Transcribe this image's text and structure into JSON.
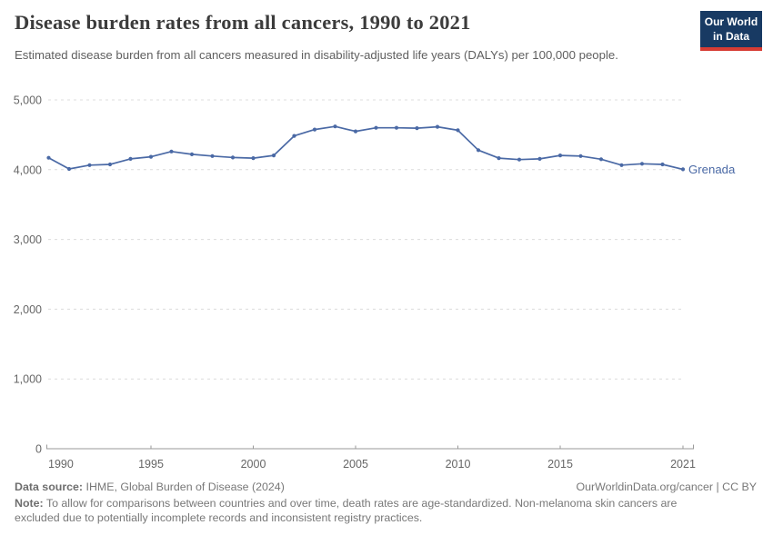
{
  "header": {
    "title": "Disease burden rates from all cancers, 1990 to 2021",
    "subtitle": "Estimated disease burden from all cancers measured in disability-adjusted life years (DALYs) per 100,000 people.",
    "logo": {
      "line1": "Our World",
      "line2": "in Data"
    }
  },
  "chart_data": {
    "type": "line",
    "title": "Disease burden rates from all cancers, 1990 to 2021",
    "subtitle": "Estimated disease burden from all cancers measured in disability-adjusted life years (DALYs) per 100,000 people.",
    "x": [
      1990,
      1991,
      1992,
      1993,
      1994,
      1995,
      1996,
      1997,
      1998,
      1999,
      2000,
      2001,
      2002,
      2003,
      2004,
      2005,
      2006,
      2007,
      2008,
      2009,
      2010,
      2011,
      2012,
      2013,
      2014,
      2015,
      2016,
      2017,
      2018,
      2019,
      2020,
      2021
    ],
    "series": [
      {
        "name": "Grenada",
        "values": [
          4170,
          4010,
          4065,
          4075,
          4155,
          4185,
          4260,
          4220,
          4195,
          4175,
          4165,
          4205,
          4485,
          4575,
          4620,
          4550,
          4600,
          4600,
          4595,
          4615,
          4565,
          4280,
          4165,
          4145,
          4155,
          4205,
          4195,
          4150,
          4065,
          4085,
          4075,
          4005
        ]
      }
    ],
    "xlabel": "",
    "ylabel": "DALYs per 100,000 people",
    "ylim": [
      0,
      5000
    ],
    "yticks": [
      0,
      1000,
      2000,
      3000,
      4000,
      5000
    ],
    "ytick_labels": [
      "0",
      "1,000",
      "2,000",
      "3,000",
      "4,000",
      "5,000"
    ],
    "xticks": [
      1990,
      1995,
      2000,
      2005,
      2010,
      2015,
      2021
    ],
    "grid": "horizontal-dashed",
    "legend": "end-of-line-label",
    "entity_label": "Grenada"
  },
  "footer": {
    "source_label": "Data source:",
    "source_text": " IHME, Global Burden of Disease (2024)",
    "link_text": "OurWorldinData.org/cancer | CC BY",
    "note_label": "Note:",
    "note_text": " To allow for comparisons between countries and over time, death rates are age-standardized. Non-melanoma skin cancers are excluded due to potentially incomplete records and inconsistent registry practices."
  },
  "colors": {
    "line": "#4a69a5",
    "entity_label": "#4a69a5",
    "grid": "#dcdcdc",
    "axis": "#9a9a9a",
    "tick_label": "#666666",
    "logo_bg": "#183a63",
    "logo_red": "#d73c34"
  }
}
